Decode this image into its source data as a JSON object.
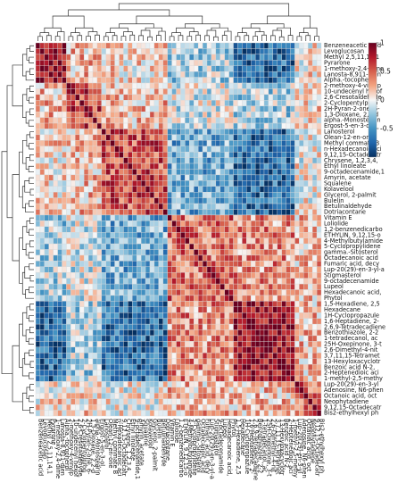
{
  "chart_data": {
    "type": "heatmap",
    "title": "",
    "xlabel": "",
    "ylabel": "",
    "value_range": [
      -1,
      1
    ],
    "colormap": "RdBu_r",
    "colors": {
      "high": "#67001f",
      "mid": "#f7f7f7",
      "low": "#053061",
      "grid": "#d9d9d9"
    },
    "colorbar": {
      "ticks": [
        1,
        0.5,
        0,
        -0.5
      ],
      "tick_labels": [
        "1",
        "0.5",
        "0",
        "-0.5"
      ]
    },
    "dendrograms": {
      "top": true,
      "left": true
    },
    "row_labels": [
      "Benzeneacetic acid",
      "Levoglucosan",
      "Methyl 2,5,11,14,1",
      "Pyrarone",
      "1-methoxy-2,4-dime",
      "Lanosta-8,911-dien",
      "Alpha.-tocopherol",
      "2-methoxy-4-vinylp",
      "10-undecenyl hexof",
      "2,6-Cresotaldehyde",
      "2-Cyclopentylprop",
      "2H-Pyran-2-one, 6-",
      "1,3-Dioxane, 2,2-d",
      "alpha.-Monostearin",
      "Ergost-5-en-3-ol,",
      "Lanosterol",
      "Olean-12-en-one",
      "Methyl commate B",
      "n-Hexadecanoic aci",
      "9,12,15-Octadecatr",
      "Chrysene, 1,2,3,4,",
      "Ethyl linoleate",
      "9-octadecenamide,1",
      "Amyrin, acetate",
      "Squalene",
      "Kolavelool",
      "Glycerol, 2-palmit",
      "Bulelin",
      "Betulinaldehyde",
      "Dotriacontane",
      "Vitamin E",
      "Loliolide",
      "1,2-benzenedicarbo",
      "ETHYLIN, 9,12,15-o",
      "4-Methylbutylamide",
      "5-Cyclopropylidene",
      "gamma.-Sitosterol",
      "Octadecanoic acid",
      "Fumaric acid, decy",
      "Lup-20(29)-en-3-yl-a",
      "Stigmasterol",
      "9-octadecenamide",
      "Lupeol",
      "Hexadecanoic acid,",
      "Phytol",
      "1,5-Hexadiene, 2,5",
      "Hexadecane",
      "1H-Cyclopropazule",
      "1,6-Heptadiene, 2-",
      "2,6,9-Tetradecadiene",
      "Benzothiazole, 2-2",
      "1-tetradecanol, ac",
      "25H-Oxepinone, 3-t",
      "2,6-Dimethyl-4-nit",
      "3,7,11,15-Tetramet",
      "13-Hexyloxacyclotr",
      "Benzoic acid N-2,",
      "2-Heptenedioic aci",
      "1-methyl-2,5-methy",
      "Lup-20(29)-en-3-yl",
      "Adenosine, N6-phen",
      "Octanoic acid, oct",
      "Neophytadiene",
      "9,12,15-Octadecatr",
      "Bis2-ethylhexyl ph"
    ],
    "col_labels": [
      "Benzeneacetic acid",
      "Levoglucosan",
      "Methyl 2,5,11,14,1",
      "Pyrarone",
      "1-methoxy-2,4-dime",
      "Lanosta-8,911-dien",
      "Alpha.-tocopherol",
      "2-methoxy-4-vinylp",
      "10-undecenyl hexof",
      "2,6-Cresotaldehyde",
      "2-Cyclopentylprop",
      "2H-Pyran-2-one, 6-",
      "1,3-Dioxane, 2,2-d",
      "alpha.-Monostearin",
      "Ergost-5-en-3-ol,",
      "Lanosterol",
      "Olean-12-en-one",
      "Methyl commate B",
      "n-Hexadecanoic aci",
      "9,12,15-Octadecatr",
      "Chrysene, 1,2,3,4,",
      "Ethyl linoleate",
      "9-octadecenamide,1",
      "Amyrin, acetate",
      "Squalene",
      "Kolavelool",
      "Glycerol, 2-palmit",
      "Bulelin",
      "Betulinaldehyde",
      "Dotriacontane",
      "Vitamin E",
      "Loliolide",
      "1,2-benzenedicarbo",
      "ETHYLIN, 9,12,15-o",
      "4-Methylbutylamide",
      "5-Cyclopropylidene",
      "gamma.-Sitosterol",
      "Octadecanoic acid",
      "Fumaric acid, decy",
      "Lup-20(29)-en-3-yl-a",
      "Stigmasterol",
      "9-octadecenamide",
      "Lupeol",
      "Hexadecanoic acid,",
      "Phytol",
      "1,5-Hexadiene, 2,5",
      "Hexadecane",
      "1H-Cyclopropazule",
      "1,6-Heptadiene, 2-",
      "2,6,9-Tetradecadiene",
      "Benzothiazole, 2-2",
      "1-tetradecanol, ac",
      "25H-Oxepinone, 3-t",
      "2,6-Dimethyl-4-nit",
      "3,7,11,15-Tetramet",
      "13-Hexyloxacyclotr",
      "Benzoic acid N-2,",
      "2-Heptenedioic aci",
      "1-methyl-2,5-methy",
      "Lup-20(29)-en-3-yl",
      "Adenosine, N6-phen",
      "Octanoic acid, oct",
      "Neophytadiene",
      "9,12,15-Octadecatr",
      "Bis2-ethylhexyl ph"
    ],
    "cluster_blocks": [
      {
        "rows": [
          0,
          6
        ],
        "value": 0.9
      },
      {
        "rows": [
          7,
          14
        ],
        "value": 0.6
      },
      {
        "rows": [
          15,
          29
        ],
        "value": 0.55
      },
      {
        "rows": [
          30,
          44
        ],
        "value": 0.45
      },
      {
        "rows": [
          45,
          58
        ],
        "value": 0.85
      },
      {
        "rows": [
          59,
          64
        ],
        "value": 0.5
      }
    ],
    "block_relations": [
      [
        0.9,
        0.2,
        0.1,
        -0.2,
        -0.7,
        0.1
      ],
      [
        0.2,
        0.6,
        0.2,
        -0.1,
        -0.2,
        0.1
      ],
      [
        0.1,
        0.2,
        0.55,
        -0.4,
        -0.7,
        0.0
      ],
      [
        -0.2,
        -0.1,
        -0.4,
        0.45,
        0.35,
        0.2
      ],
      [
        -0.7,
        -0.2,
        -0.7,
        0.35,
        0.85,
        0.2
      ],
      [
        0.1,
        0.1,
        0.0,
        0.2,
        0.2,
        0.5
      ]
    ]
  }
}
